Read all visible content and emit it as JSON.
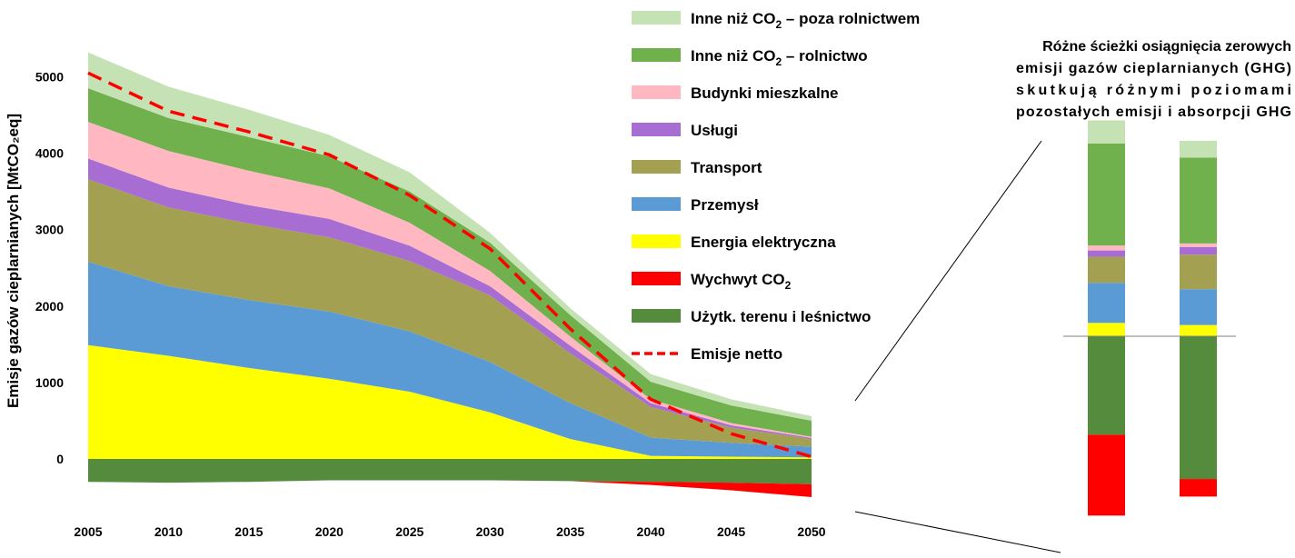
{
  "chart_data": {
    "type": "area",
    "ylabel": "Emisje gazów cieplarnianych [MtCO₂eq]",
    "xlabel": "",
    "x": [
      2005,
      2010,
      2015,
      2020,
      2025,
      2030,
      2035,
      2040,
      2045,
      2050
    ],
    "ylim": [
      -600,
      5300
    ],
    "yticks": [
      0,
      1000,
      2000,
      3000,
      4000,
      5000
    ],
    "yticks_labels": [
      "0",
      "1000",
      "2000",
      "3000",
      "4000",
      "5000"
    ],
    "xticks_labels": [
      "2005",
      "2010",
      "2015",
      "2020",
      "2025",
      "2030",
      "2035",
      "2040",
      "2045",
      "2050"
    ],
    "series": [
      {
        "name": "Energia elektryczna",
        "key": "energia",
        "color": "#FFFF00",
        "values": [
          1490,
          1350,
          1190,
          1050,
          880,
          610,
          260,
          40,
          30,
          20
        ]
      },
      {
        "name": "Przemysł",
        "key": "przemysl",
        "color": "#5B9BD5",
        "values": [
          1090,
          910,
          890,
          880,
          790,
          660,
          470,
          240,
          180,
          140
        ]
      },
      {
        "name": "Transport",
        "key": "transport",
        "color": "#A4A052",
        "values": [
          1080,
          1030,
          1000,
          970,
          920,
          870,
          650,
          400,
          200,
          100
        ]
      },
      {
        "name": "Usługi",
        "key": "uslugi",
        "color": "#A76DD2",
        "values": [
          270,
          260,
          240,
          240,
          200,
          120,
          100,
          50,
          30,
          15
        ]
      },
      {
        "name": "Budynki mieszkalne",
        "key": "budynki",
        "color": "#FFB8C2",
        "values": [
          480,
          480,
          450,
          400,
          300,
          200,
          120,
          50,
          30,
          15
        ]
      },
      {
        "name": "Inne niż CO₂ – rolnictwo",
        "key": "rolnictwo",
        "color": "#70B04D",
        "values": [
          440,
          430,
          440,
          420,
          410,
          370,
          280,
          230,
          230,
          210
        ]
      },
      {
        "name": "Inne niż CO₂ – poza rolnictwem",
        "key": "poza",
        "color": "#C4E2B4",
        "values": [
          470,
          410,
          360,
          280,
          250,
          130,
          90,
          100,
          80,
          60
        ]
      }
    ],
    "negative_series": [
      {
        "name": "Użytk. terenu i leśnictwo",
        "key": "lulucf",
        "color": "#558B3C",
        "values": [
          -300,
          -310,
          -300,
          -280,
          -280,
          -280,
          -290,
          -300,
          -310,
          -330
        ]
      },
      {
        "name": "Wychwyt CO₂",
        "key": "ccs",
        "color": "#FF0000",
        "values": [
          0,
          0,
          0,
          0,
          0,
          0,
          0,
          -40,
          -100,
          -170
        ]
      }
    ],
    "net_line": {
      "name": "Emisje netto",
      "color": "#FF0000",
      "style": "dashed",
      "values": [
        5050,
        4550,
        4280,
        3980,
        3450,
        2750,
        1700,
        780,
        330,
        30
      ]
    },
    "legend_order": [
      "poza",
      "rolnictwo",
      "budynki",
      "uslugi",
      "transport",
      "przemysl",
      "energia",
      "ccs",
      "lulucf",
      "net"
    ],
    "legend_labels": {
      "poza": "Inne niż CO₂ – poza rolnictwem",
      "rolnictwo": "Inne niż CO₂ – rolnictwo",
      "budynki": "Budynki mieszkalne",
      "uslugi": "Usługi",
      "transport": "Transport",
      "przemysl": "Przemysł",
      "energia": "Energia elektryczna",
      "ccs": "Wychwyt CO₂",
      "lulucf": "Użytk. terenu i leśnictwo",
      "net": "Emisje netto"
    },
    "inset": {
      "annotation": [
        "Różne ścieżki osiągnięcia zerowych",
        "emisji gazów cieplarnianych (GHG)",
        "skutkują różnymi poziomami",
        "pozostałych emisji i absorpcji GHG"
      ],
      "ylim": [
        -1300,
        1370
      ],
      "bars": [
        {
          "positive": [
            {
              "key": "energia",
              "value": 95
            },
            {
              "key": "przemysl",
              "value": 285
            },
            {
              "key": "transport",
              "value": 185
            },
            {
              "key": "uslugi",
              "value": 45
            },
            {
              "key": "budynki",
              "value": 35
            },
            {
              "key": "rolnictwo",
              "value": 725
            },
            {
              "key": "poza",
              "value": 165
            }
          ],
          "negative": [
            {
              "key": "lulucf",
              "value": -700
            },
            {
              "key": "ccs",
              "value": -575
            }
          ]
        },
        {
          "positive": [
            {
              "key": "energia",
              "value": 80
            },
            {
              "key": "przemysl",
              "value": 255
            },
            {
              "key": "transport",
              "value": 245
            },
            {
              "key": "uslugi",
              "value": 55
            },
            {
              "key": "budynki",
              "value": 25
            },
            {
              "key": "rolnictwo",
              "value": 610
            },
            {
              "key": "poza",
              "value": 120
            }
          ],
          "negative": [
            {
              "key": "lulucf",
              "value": -1015
            },
            {
              "key": "ccs",
              "value": -125
            }
          ]
        }
      ]
    }
  }
}
